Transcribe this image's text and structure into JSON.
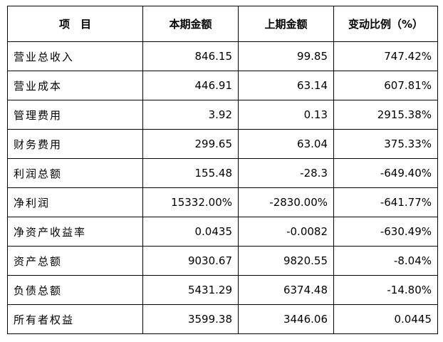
{
  "table": {
    "headers": [
      "项　目",
      "本期金额",
      "上期金额",
      "变动比例（%）"
    ],
    "rows": [
      [
        "营业总收入",
        "846.15",
        "99.85",
        "747.42%"
      ],
      [
        "营业成本",
        "446.91",
        "63.14",
        "607.81%"
      ],
      [
        "管理费用",
        "3.92",
        "0.13",
        "2915.38%"
      ],
      [
        "财务费用",
        "299.65",
        "63.04",
        "375.33%"
      ],
      [
        "利润总额",
        "155.48",
        "-28.3",
        "-649.40%"
      ],
      [
        "净利润",
        "15332.00%",
        "-2830.00%",
        "-641.77%"
      ],
      [
        "净资产收益率",
        "0.0435",
        "-0.0082",
        "-630.49%"
      ],
      [
        "资产总额",
        "9030.67",
        "9820.55",
        "-8.04%"
      ],
      [
        "负债总额",
        "5431.29",
        "6374.48",
        "-14.80%"
      ],
      [
        "所有者权益",
        "3599.38",
        "3446.06",
        "0.0445"
      ]
    ]
  }
}
